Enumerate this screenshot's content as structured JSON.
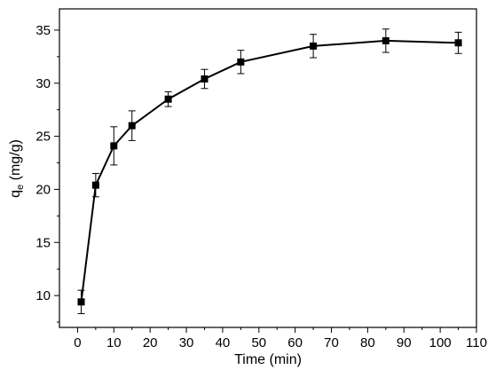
{
  "chart_data": {
    "type": "line",
    "title": "",
    "xlabel": "Time (min)",
    "ylabel_main": "q",
    "ylabel_sub": "e",
    "ylabel_unit": " (mg/g)",
    "xlim": [
      -5,
      110
    ],
    "ylim": [
      7,
      37
    ],
    "xticks": [
      0,
      10,
      20,
      30,
      40,
      50,
      60,
      70,
      80,
      90,
      100,
      110
    ],
    "yticks": [
      10,
      15,
      20,
      25,
      30,
      35
    ],
    "grid": false,
    "marker": "square",
    "series": [
      {
        "x": [
          1,
          5,
          10,
          15,
          25,
          35,
          45,
          65,
          85,
          105
        ],
        "y": [
          9.4,
          20.4,
          24.1,
          26.0,
          28.5,
          30.4,
          32.0,
          33.5,
          34.0,
          33.8
        ],
        "error": [
          1.1,
          1.1,
          1.8,
          1.4,
          0.7,
          0.9,
          1.1,
          1.1,
          1.1,
          1.0
        ]
      }
    ]
  }
}
